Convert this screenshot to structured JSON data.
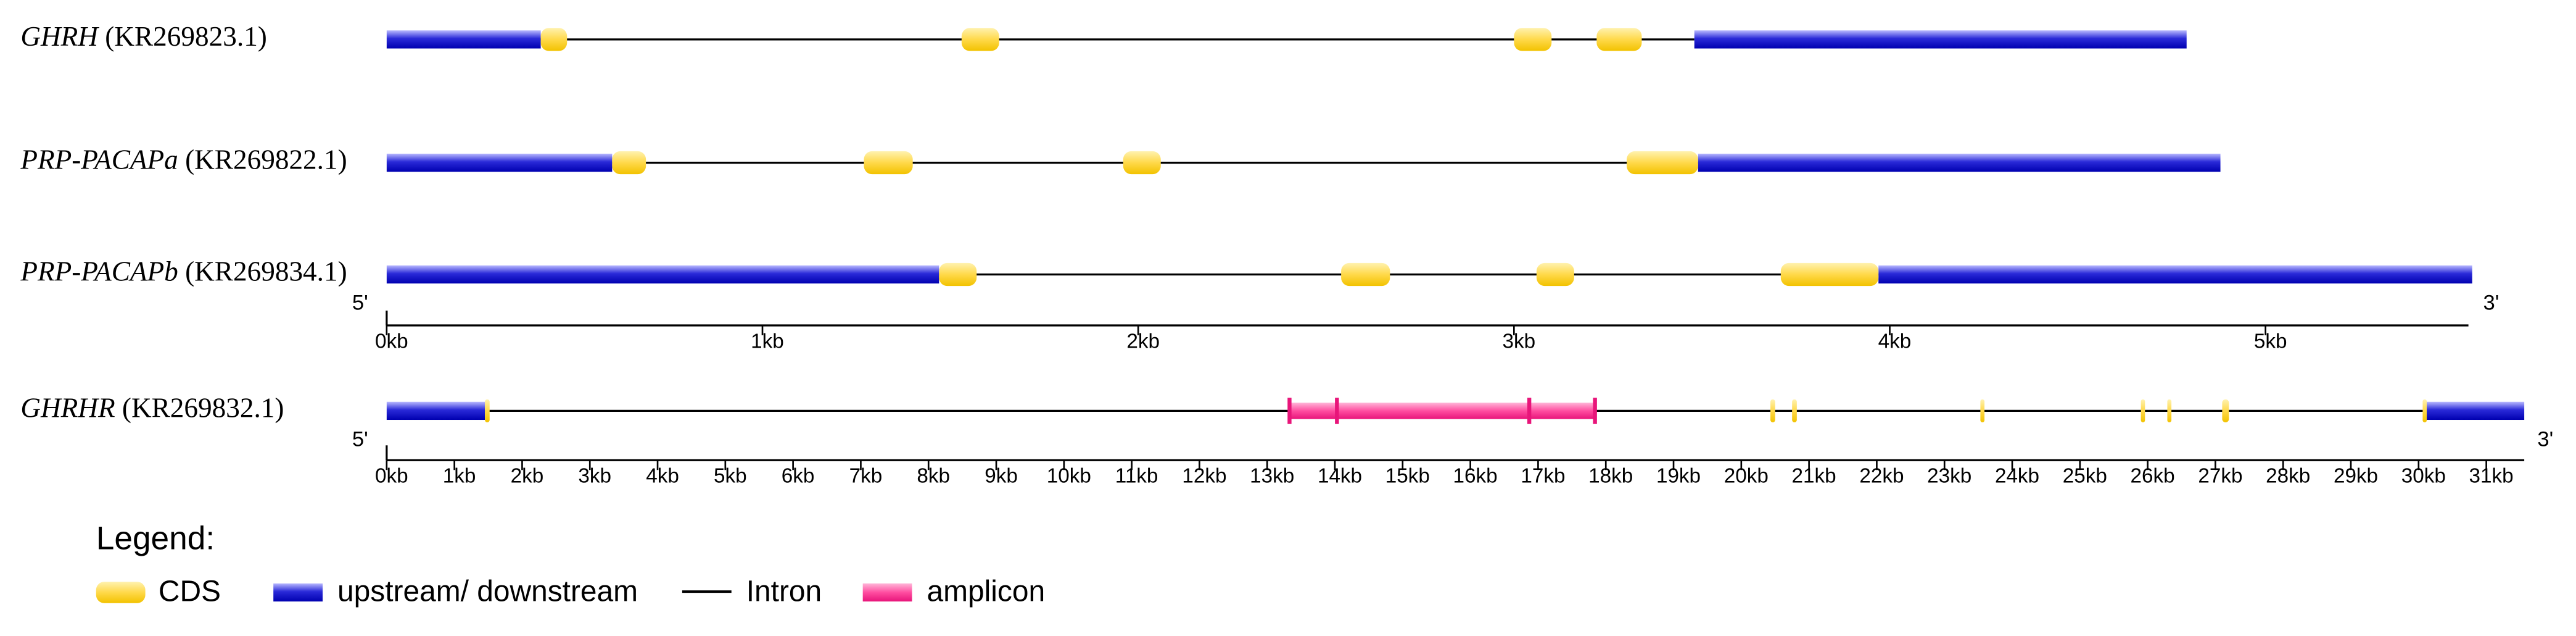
{
  "panels": [
    {
      "tracks": [
        {
          "gene": "GHRH",
          "accession": "(KR269823.1)",
          "upstream": [
            0,
            0.41
          ],
          "cds": [
            [
              0.41,
              0.48
            ],
            [
              1.53,
              1.63
            ],
            [
              3.0,
              3.1
            ],
            [
              3.22,
              3.34
            ]
          ],
          "downstream": [
            3.48,
            4.79
          ]
        },
        {
          "gene": "PRP-PACAPa",
          "accession": "(KR269822.1)",
          "upstream": [
            0,
            0.6
          ],
          "cds": [
            [
              0.6,
              0.69
            ],
            [
              1.27,
              1.4
            ],
            [
              1.96,
              2.06
            ],
            [
              3.3,
              3.49
            ]
          ],
          "downstream": [
            3.49,
            4.88
          ]
        },
        {
          "gene": "PRP-PACAPb",
          "accession": "(KR269834.1)",
          "upstream": [
            0,
            1.47
          ],
          "cds": [
            [
              1.47,
              1.57
            ],
            [
              2.54,
              2.67
            ],
            [
              3.06,
              3.16
            ],
            [
              3.71,
              3.97
            ]
          ],
          "downstream": [
            3.97,
            5.55
          ]
        }
      ],
      "five_prime": "5'",
      "three_prime": "3'",
      "xlim": [
        0,
        5.54
      ],
      "xticks": [
        {
          "value": 0,
          "label": "0kb"
        },
        {
          "value": 1,
          "label": "1kb"
        },
        {
          "value": 2,
          "label": "2kb"
        },
        {
          "value": 3,
          "label": "3kb"
        },
        {
          "value": 4,
          "label": "4kb"
        },
        {
          "value": 5,
          "label": "5kb"
        }
      ]
    },
    {
      "tracks": [
        {
          "gene": "GHRHR",
          "accession": "(KR269832.1)",
          "upstream": [
            0,
            1.45
          ],
          "cds": [
            [
              1.45,
              1.52
            ],
            [
              20.43,
              20.5
            ],
            [
              20.75,
              20.82
            ],
            [
              23.53,
              23.57
            ],
            [
              25.9,
              25.94
            ],
            [
              26.29,
              26.33
            ],
            [
              27.1,
              27.2
            ],
            [
              30.06,
              30.1
            ]
          ],
          "amplicon": [
            13.33,
            14.03,
            16.87,
            17.84
          ],
          "downstream": [
            30.1,
            31.56
          ]
        }
      ],
      "five_prime": "5'",
      "three_prime": "3'",
      "xlim": [
        0,
        31.56
      ],
      "xticks": [
        {
          "value": 0,
          "label": "0kb"
        },
        {
          "value": 1,
          "label": "1kb"
        },
        {
          "value": 2,
          "label": "2kb"
        },
        {
          "value": 3,
          "label": "3kb"
        },
        {
          "value": 4,
          "label": "4kb"
        },
        {
          "value": 5,
          "label": "5kb"
        },
        {
          "value": 6,
          "label": "6kb"
        },
        {
          "value": 7,
          "label": "7kb"
        },
        {
          "value": 8,
          "label": "8kb"
        },
        {
          "value": 9,
          "label": "9kb"
        },
        {
          "value": 10,
          "label": "10kb"
        },
        {
          "value": 11,
          "label": "11kb"
        },
        {
          "value": 12,
          "label": "12kb"
        },
        {
          "value": 13,
          "label": "13kb"
        },
        {
          "value": 14,
          "label": "14kb"
        },
        {
          "value": 15,
          "label": "15kb"
        },
        {
          "value": 16,
          "label": "16kb"
        },
        {
          "value": 17,
          "label": "17kb"
        },
        {
          "value": 18,
          "label": "18kb"
        },
        {
          "value": 19,
          "label": "19kb"
        },
        {
          "value": 20,
          "label": "20kb"
        },
        {
          "value": 21,
          "label": "21kb"
        },
        {
          "value": 22,
          "label": "22kb"
        },
        {
          "value": 23,
          "label": "23kb"
        },
        {
          "value": 24,
          "label": "24kb"
        },
        {
          "value": 25,
          "label": "25kb"
        },
        {
          "value": 26,
          "label": "26kb"
        },
        {
          "value": 27,
          "label": "27kb"
        },
        {
          "value": 28,
          "label": "28kb"
        },
        {
          "value": 29,
          "label": "29kb"
        },
        {
          "value": 30,
          "label": "30kb"
        },
        {
          "value": 31,
          "label": "31kb"
        }
      ]
    }
  ],
  "legend": {
    "title": "Legend:",
    "items": [
      "CDS",
      "upstream/ downstream",
      "Intron",
      "amplicon"
    ]
  }
}
